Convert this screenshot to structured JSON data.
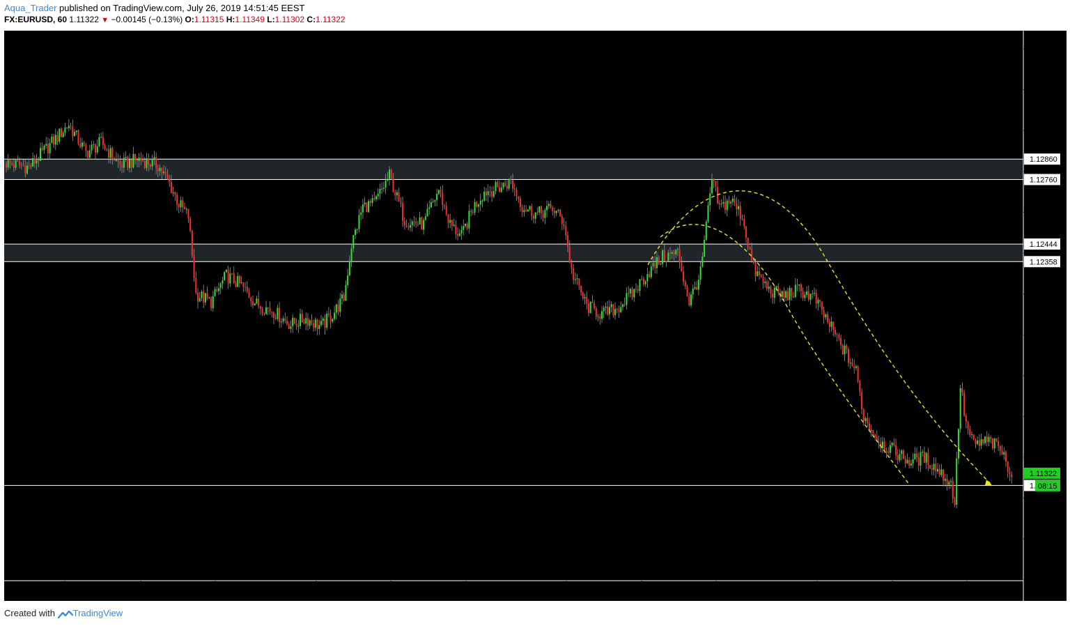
{
  "header": {
    "user": "Aqua_Trader",
    "published_text": " published on TradingView.com, July 26, 2019 14:51:45 EEST",
    "symbol": "FX:EURUSD, 60",
    "last": "1.11322",
    "change": "−0.00145 (−0.13%)",
    "o_label": "O:",
    "o_val": "1.11315",
    "h_label": "H:",
    "h_val": "1.11349",
    "l_label": "L:",
    "l_val": "1.11302",
    "c_label": "C:",
    "c_val": "1.11322"
  },
  "footer": {
    "created_with": "Created with",
    "brand": "TradingView"
  },
  "colors": {
    "background": "#000000",
    "up": "#2ee52e",
    "down": "#ff2a2a",
    "zone": "#1f2528",
    "level_line": "#ffffff",
    "projection": "#e8e81a",
    "price_badge": "#1fd11f"
  },
  "chart_data": {
    "type": "candlestick",
    "title": "",
    "xlabel": "",
    "ylabel": "",
    "ylim": [
      1.108,
      1.135
    ],
    "y_ticks": [
      "1.13400",
      "1.13200",
      "1.13000",
      "1.12800",
      "1.12600",
      "1.12400",
      "1.12200",
      "1.12000",
      "1.11800",
      "1.11600",
      "1.11400",
      "1.11200",
      "1.11000",
      "1.10800"
    ],
    "x_ticks": [
      "3",
      "12:00",
      "8",
      "10",
      "12:00",
      "15",
      "17",
      "12:00",
      "22",
      "24",
      "12:00",
      "29"
    ],
    "zones": [
      {
        "top": 1.1286,
        "bottom": 1.1276,
        "label_top": "1.12860",
        "label_bottom": "1.12760"
      },
      {
        "top": 1.12444,
        "bottom": 1.12358,
        "label_top": "1.12444",
        "label_bottom": "1.12358"
      }
    ],
    "support_line": {
      "value": 1.11262,
      "label": "1.11262"
    },
    "current_price": {
      "value": 1.11322,
      "label": "1.11322",
      "countdown": "08:15"
    },
    "price_path": [
      [
        0,
        1.1284
      ],
      [
        12,
        1.1282
      ],
      [
        22,
        1.1292
      ],
      [
        33,
        1.1303
      ],
      [
        42,
        1.1289
      ],
      [
        50,
        1.1294
      ],
      [
        60,
        1.1283
      ],
      [
        70,
        1.1286
      ],
      [
        80,
        1.1283
      ],
      [
        86,
        1.1274
      ],
      [
        91,
        1.1264
      ],
      [
        96,
        1.1258
      ],
      [
        100,
        1.122
      ],
      [
        108,
        1.1216
      ],
      [
        116,
        1.1229
      ],
      [
        124,
        1.1224
      ],
      [
        132,
        1.1215
      ],
      [
        140,
        1.1212
      ],
      [
        150,
        1.1205
      ],
      [
        158,
        1.1208
      ],
      [
        166,
        1.1204
      ],
      [
        172,
        1.121
      ],
      [
        178,
        1.1218
      ],
      [
        182,
        1.1244
      ],
      [
        188,
        1.1263
      ],
      [
        194,
        1.1264
      ],
      [
        202,
        1.1278
      ],
      [
        210,
        1.1256
      ],
      [
        220,
        1.1254
      ],
      [
        228,
        1.1271
      ],
      [
        234,
        1.1254
      ],
      [
        240,
        1.1248
      ],
      [
        246,
        1.1262
      ],
      [
        252,
        1.127
      ],
      [
        260,
        1.1272
      ],
      [
        266,
        1.1275
      ],
      [
        272,
        1.1263
      ],
      [
        280,
        1.1259
      ],
      [
        288,
        1.1262
      ],
      [
        294,
        1.1255
      ],
      [
        298,
        1.1231
      ],
      [
        306,
        1.1214
      ],
      [
        314,
        1.121
      ],
      [
        322,
        1.1213
      ],
      [
        330,
        1.122
      ],
      [
        338,
        1.123
      ],
      [
        346,
        1.1238
      ],
      [
        354,
        1.124
      ],
      [
        360,
        1.1216
      ],
      [
        366,
        1.123
      ],
      [
        372,
        1.1276
      ],
      [
        376,
        1.1262
      ],
      [
        382,
        1.1266
      ],
      [
        388,
        1.1258
      ],
      [
        394,
        1.1232
      ],
      [
        402,
        1.1222
      ],
      [
        410,
        1.1219
      ],
      [
        418,
        1.1222
      ],
      [
        426,
        1.1218
      ],
      [
        432,
        1.1208
      ],
      [
        440,
        1.1195
      ],
      [
        448,
        1.1182
      ],
      [
        452,
        1.116
      ],
      [
        460,
        1.1148
      ],
      [
        468,
        1.1143
      ],
      [
        476,
        1.1138
      ],
      [
        484,
        1.114
      ],
      [
        492,
        1.1133
      ],
      [
        498,
        1.1127
      ],
      [
        500,
        1.1118
      ],
      [
        503,
        1.1175
      ],
      [
        506,
        1.1156
      ],
      [
        510,
        1.1146
      ],
      [
        518,
        1.1148
      ],
      [
        524,
        1.1144
      ],
      [
        528,
        1.1136
      ],
      [
        530,
        1.1132
      ]
    ]
  }
}
